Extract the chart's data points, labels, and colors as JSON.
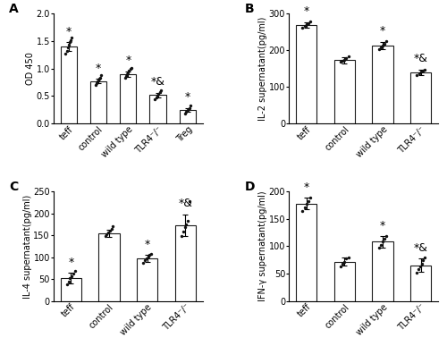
{
  "A": {
    "categories": [
      "teff",
      "control",
      "wild type",
      "TLR4⁻/⁻",
      "Treg"
    ],
    "means": [
      1.4,
      0.77,
      0.9,
      0.52,
      0.25
    ],
    "sems": [
      0.08,
      0.04,
      0.05,
      0.04,
      0.03
    ],
    "dots": [
      [
        1.28,
        1.33,
        1.38,
        1.43,
        1.48,
        1.52,
        1.56
      ],
      [
        0.7,
        0.73,
        0.76,
        0.78,
        0.81,
        0.84,
        0.88
      ],
      [
        0.83,
        0.87,
        0.9,
        0.93,
        0.96,
        0.99,
        1.02
      ],
      [
        0.44,
        0.47,
        0.51,
        0.54,
        0.57,
        0.61
      ],
      [
        0.18,
        0.22,
        0.25,
        0.28,
        0.32
      ]
    ],
    "annotations": [
      "*",
      "*",
      "*",
      "*&",
      "*"
    ],
    "ylabel": "OD 450",
    "ylim": [
      0,
      2.0
    ],
    "yticks": [
      0.0,
      0.5,
      1.0,
      1.5,
      2.0
    ],
    "label": "A"
  },
  "B": {
    "categories": [
      "teff",
      "control",
      "wild type",
      "TLR4⁻/⁻"
    ],
    "means": [
      270,
      173,
      213,
      140
    ],
    "sems": [
      7,
      8,
      10,
      7
    ],
    "dots": [
      [
        262,
        267,
        271,
        274,
        278
      ],
      [
        168,
        172,
        175,
        178,
        183
      ],
      [
        203,
        208,
        213,
        218,
        225
      ],
      [
        132,
        137,
        141,
        145,
        148
      ]
    ],
    "annotations": [
      "*",
      "",
      "*",
      "*&"
    ],
    "ylabel": "IL-2 supernatant(pg/ml)",
    "ylim": [
      0,
      300
    ],
    "yticks": [
      0,
      100,
      200,
      300
    ],
    "label": "B"
  },
  "C": {
    "categories": [
      "teff",
      "control",
      "wild type",
      "TLR4⁻/⁻"
    ],
    "means": [
      52,
      155,
      97,
      173
    ],
    "sems": [
      12,
      8,
      8,
      25
    ],
    "dots": [
      [
        38,
        45,
        52,
        57,
        63,
        68
      ],
      [
        148,
        152,
        156,
        160,
        165,
        170
      ],
      [
        88,
        93,
        97,
        101,
        105,
        108
      ],
      [
        148,
        158,
        168,
        175,
        183,
        228
      ]
    ],
    "annotations": [
      "*",
      "",
      "*",
      "*&"
    ],
    "ylabel": "IL-4 supernatant(pg/ml)",
    "ylim": [
      0,
      250
    ],
    "yticks": [
      0,
      50,
      100,
      150,
      200,
      250
    ],
    "label": "C"
  },
  "D": {
    "categories": [
      "teff",
      "control",
      "wild type",
      "TLR4⁻/⁻"
    ],
    "means": [
      178,
      72,
      108,
      65
    ],
    "sems": [
      10,
      8,
      10,
      12
    ],
    "dots": [
      [
        165,
        170,
        178,
        183,
        188
      ],
      [
        63,
        68,
        72,
        77,
        80
      ],
      [
        97,
        102,
        108,
        113,
        118
      ],
      [
        52,
        58,
        63,
        68,
        75,
        80
      ]
    ],
    "annotations": [
      "*",
      "",
      "*",
      "*&"
    ],
    "ylabel": "IFN-γ supernatant(pg/ml)",
    "ylim": [
      0,
      200
    ],
    "yticks": [
      0,
      50,
      100,
      150,
      200
    ],
    "label": "D"
  },
  "bar_color": "#ffffff",
  "bar_edgecolor": "#1a1a1a",
  "dot_color": "#111111",
  "annotation_fontsize": 9,
  "axis_fontsize": 7,
  "tick_fontsize": 7,
  "label_fontsize": 10
}
